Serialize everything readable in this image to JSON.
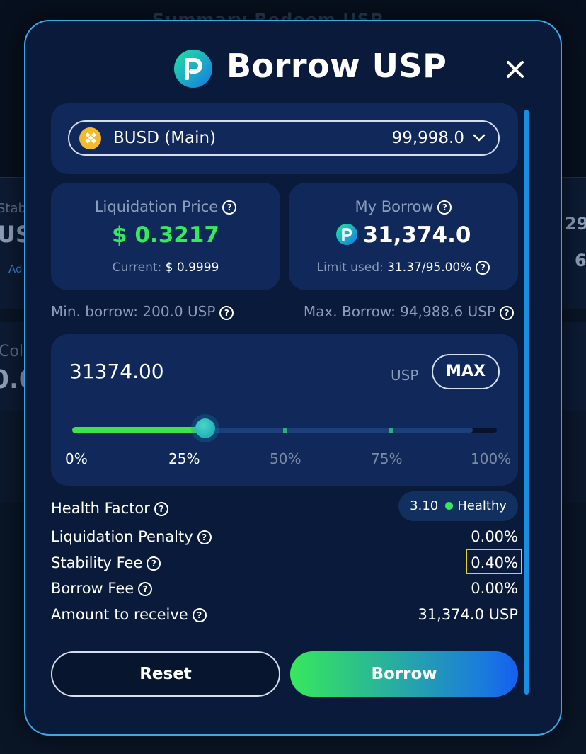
{
  "background": {
    "top_text": "Summary   Redeem   USP",
    "frag_stab": "Stab",
    "frag_us": "US",
    "frag_ad": "Ad",
    "frag_col": "Col",
    "frag_0": "0.0",
    "frag_29": "29",
    "frag_6": "6"
  },
  "modal": {
    "title": "Borrow USP",
    "collateral": {
      "label": "BUSD (Main)",
      "value": "99,998.0"
    },
    "liquidation_price": {
      "title": "Liquidation Price",
      "value": "$ 0.3217",
      "current_label": "Current:",
      "current_value": "$ 0.9999"
    },
    "my_borrow": {
      "title": "My Borrow",
      "value": "31,374.0",
      "limit_label": "Limit used:",
      "limit_value": "31.37/95.00%"
    },
    "min_borrow": "Min. borrow: 200.0 USP",
    "max_borrow": "Max. Borrow: 94,988.6 USP",
    "amount": {
      "value": "31374.00",
      "unit": "USP",
      "max_label": "MAX",
      "slider_percent": 31.37,
      "ticks": [
        "0%",
        "25%",
        "50%",
        "75%",
        "100%"
      ]
    },
    "details": {
      "health_factor_label": "Health Factor",
      "health_factor_value": "3.10",
      "health_status": "Healthy",
      "liquidation_penalty_label": "Liquidation Penalty",
      "liquidation_penalty_value": "0.00%",
      "stability_fee_label": "Stability Fee",
      "stability_fee_value": "0.40%",
      "borrow_fee_label": "Borrow Fee",
      "borrow_fee_value": "0.00%",
      "amount_to_receive_label": "Amount to receive",
      "amount_to_receive_value": "31,374.0 USP"
    },
    "buttons": {
      "reset": "Reset",
      "borrow": "Borrow"
    }
  },
  "colors": {
    "accent_green": "#37e85c",
    "accent_blue": "#1a7bdc",
    "border_cyan": "#38a9e8",
    "highlight_yellow": "#e6d21b"
  }
}
